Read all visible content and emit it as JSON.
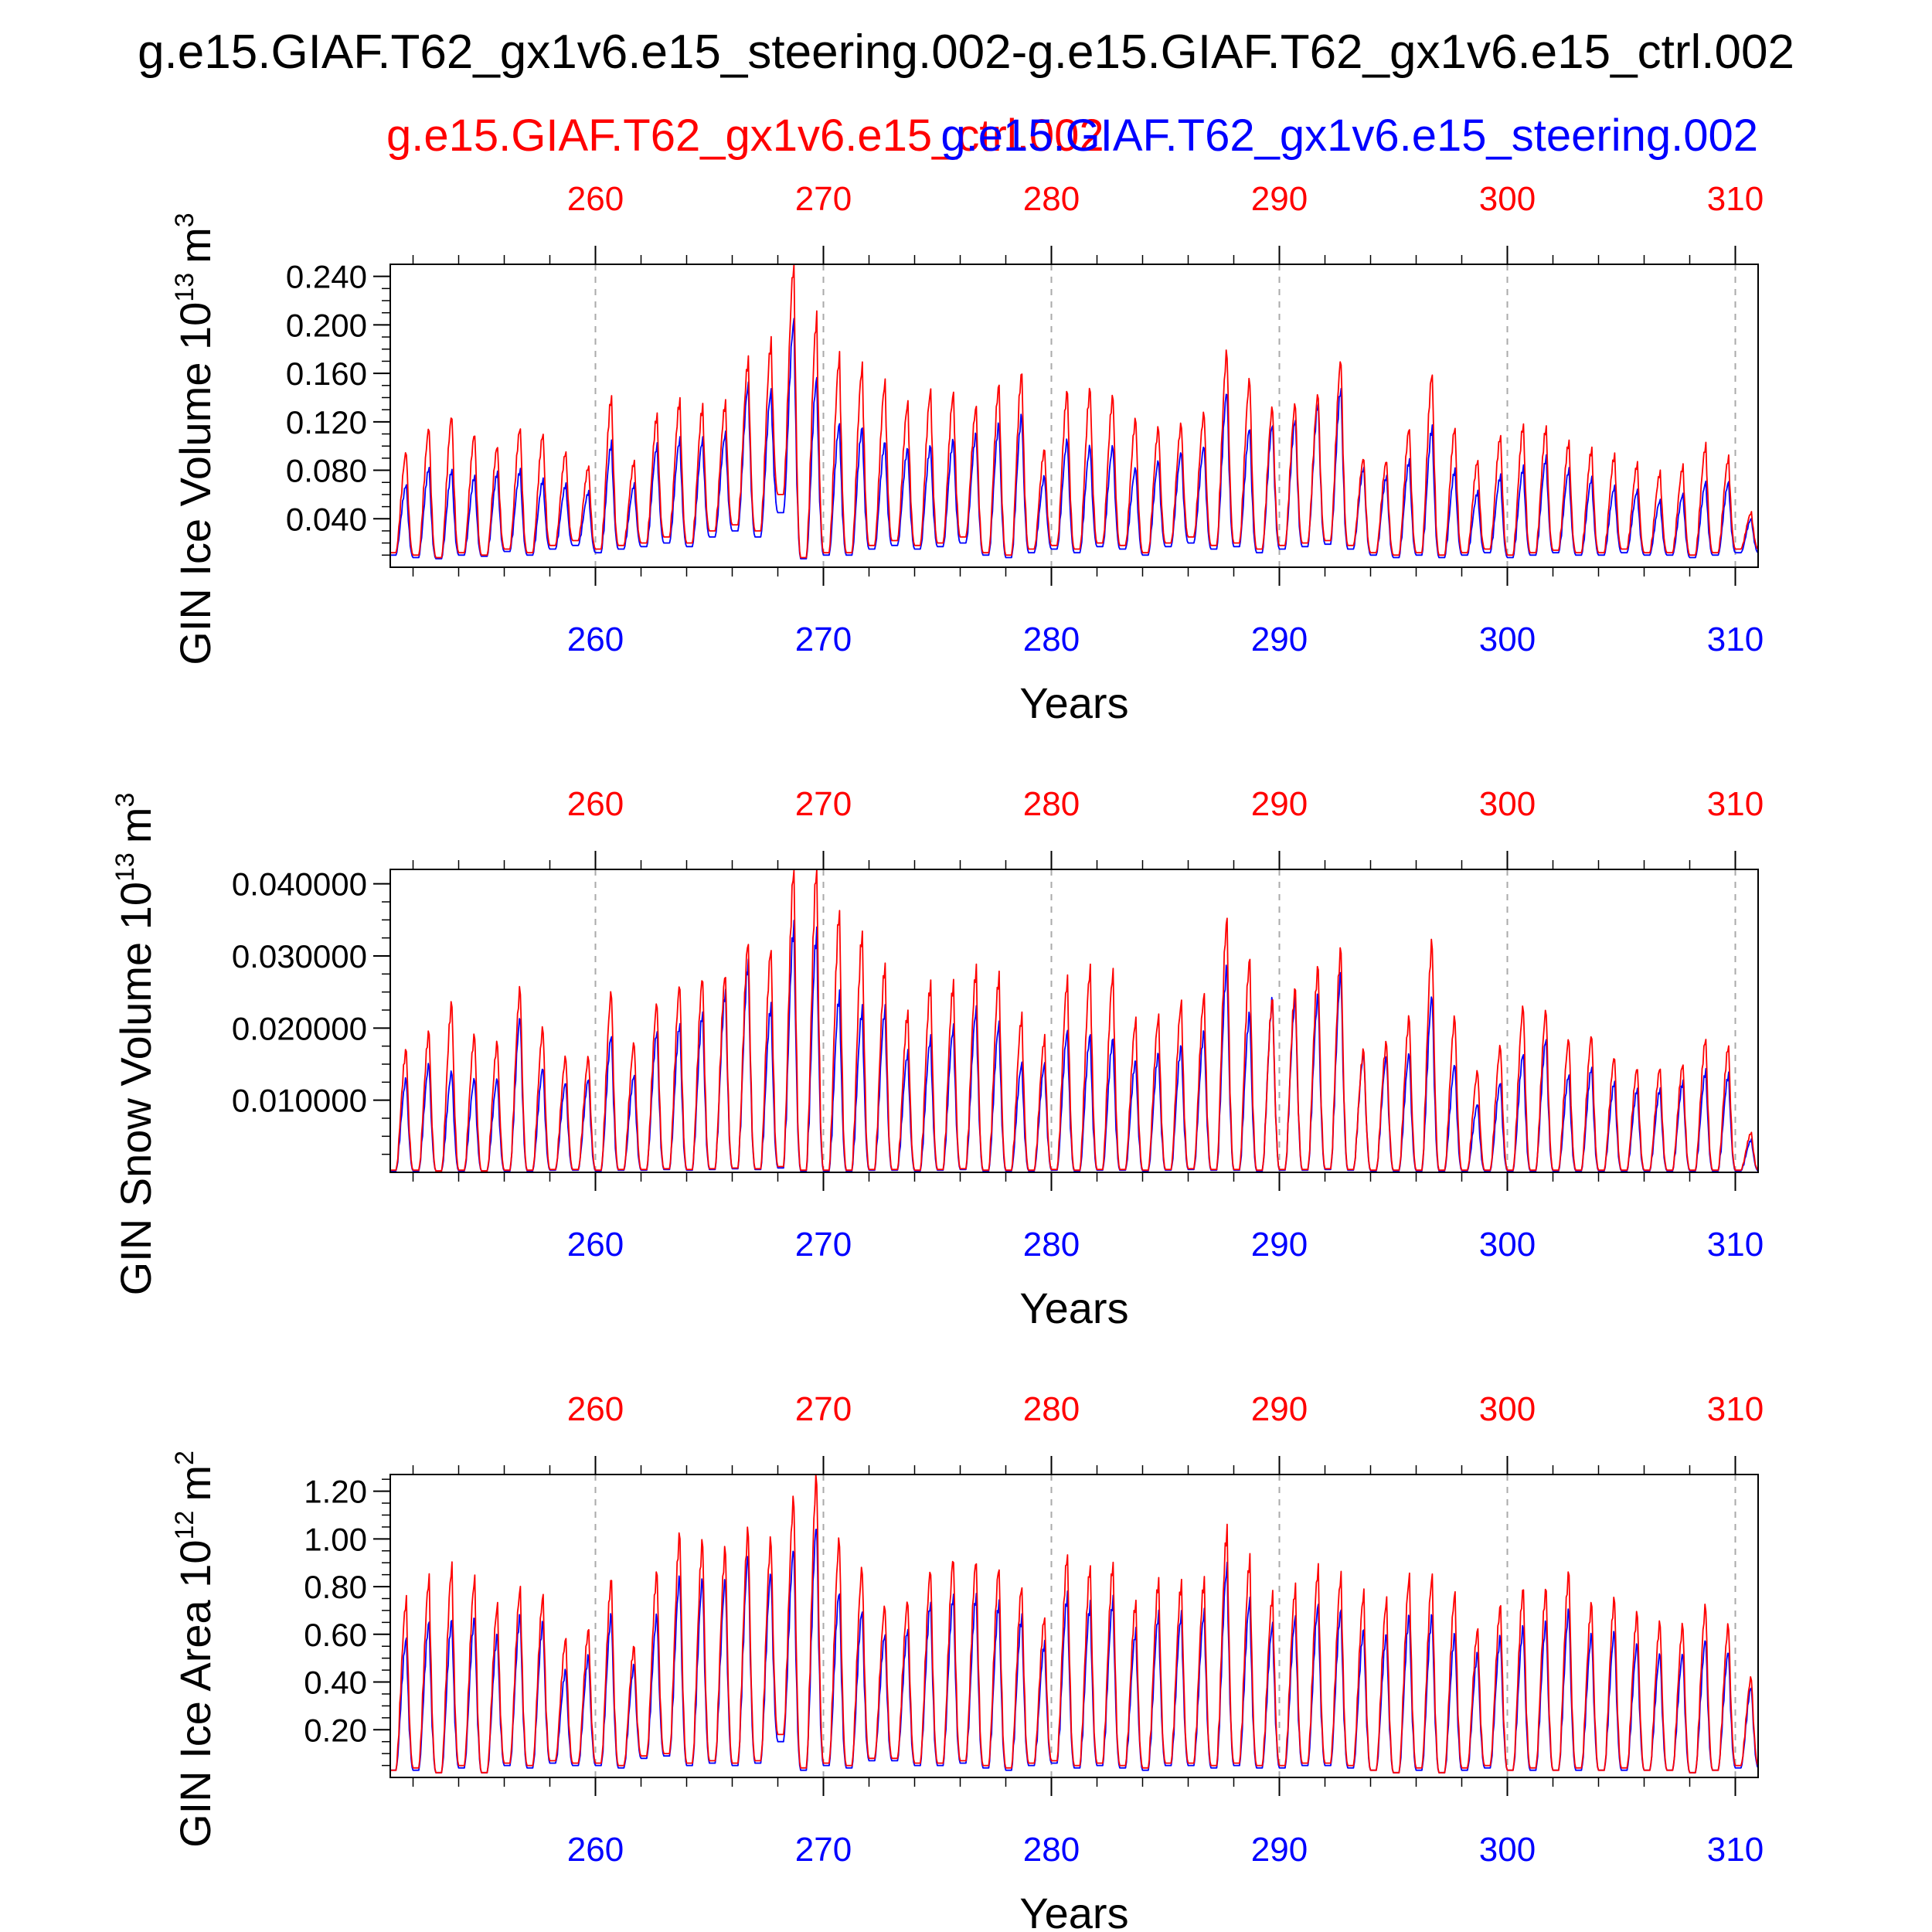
{
  "figure": {
    "title": "g.e15.GIAF.T62_gx1v6.e15_steering.002-g.e15.GIAF.T62_gx1v6.e15_ctrl.002",
    "series_ctrl_label": "g.e15.GIAF.T62_gx1v6.e15_ctrl.002",
    "series_steering_label": "g.e15.GIAF.T62_gx1v6.e15_steering.002",
    "colors": {
      "ctrl": "#ff0000",
      "steering": "#0000ff",
      "axis": "#000000",
      "grid": "#aaaaaa"
    }
  },
  "chart_data": [
    {
      "type": "line",
      "title": "",
      "xlabel": "Years",
      "ylabel": "GIN Ice Volume 10^13 m^3",
      "ylabel_main": "GIN Ice Volume 10",
      "ylabel_exp": "13",
      "ylabel_unit": "m",
      "ylabel_unit_exp": "3",
      "xlim": [
        251,
        311
      ],
      "ylim": [
        0.0,
        0.25
      ],
      "yticks": [
        0.04,
        0.08,
        0.12,
        0.16,
        0.2,
        0.24
      ],
      "ytick_labels": [
        "0.040",
        "0.080",
        "0.120",
        "0.160",
        "0.200",
        "0.240"
      ],
      "xticks": [
        260,
        270,
        280,
        290,
        300,
        310
      ],
      "xtick_labels": [
        "260",
        "270",
        "280",
        "290",
        "300",
        "310"
      ],
      "grid": "dashed vertical at decades",
      "series": [
        {
          "name": "g.e15.GIAF.T62_gx1v6.e15_ctrl.002",
          "color": "#ff0000",
          "year_start": 251,
          "annual_max": [
            0.095,
            0.115,
            0.125,
            0.11,
            0.1,
            0.115,
            0.11,
            0.095,
            0.083,
            0.14,
            0.087,
            0.125,
            0.137,
            0.132,
            0.135,
            0.17,
            0.185,
            0.25,
            0.205,
            0.173,
            0.165,
            0.152,
            0.135,
            0.145,
            0.143,
            0.132,
            0.15,
            0.16,
            0.097,
            0.145,
            0.147,
            0.141,
            0.122,
            0.115,
            0.118,
            0.127,
            0.178,
            0.155,
            0.132,
            0.135,
            0.143,
            0.171,
            0.09,
            0.088,
            0.115,
            0.16,
            0.115,
            0.088,
            0.108,
            0.117,
            0.115,
            0.103,
            0.097,
            0.092,
            0.085,
            0.078,
            0.083,
            0.1,
            0.09,
            0.045
          ],
          "annual_min": [
            0.012,
            0.01,
            0.008,
            0.012,
            0.01,
            0.015,
            0.012,
            0.018,
            0.022,
            0.015,
            0.018,
            0.02,
            0.025,
            0.02,
            0.03,
            0.035,
            0.03,
            0.06,
            0.008,
            0.012,
            0.012,
            0.018,
            0.022,
            0.018,
            0.02,
            0.025,
            0.012,
            0.01,
            0.015,
            0.018,
            0.015,
            0.02,
            0.018,
            0.012,
            0.02,
            0.025,
            0.018,
            0.02,
            0.015,
            0.018,
            0.02,
            0.022,
            0.018,
            0.012,
            0.01,
            0.012,
            0.01,
            0.012,
            0.015,
            0.01,
            0.012,
            0.014,
            0.012,
            0.012,
            0.015,
            0.012,
            0.012,
            0.01,
            0.012,
            0.015
          ]
        },
        {
          "name": "g.e15.GIAF.T62_gx1v6.e15_steering.002",
          "color": "#0000ff",
          "year_start": 251,
          "annual_max": [
            0.068,
            0.082,
            0.08,
            0.075,
            0.078,
            0.08,
            0.072,
            0.068,
            0.062,
            0.102,
            0.068,
            0.1,
            0.105,
            0.105,
            0.11,
            0.15,
            0.145,
            0.203,
            0.155,
            0.118,
            0.115,
            0.103,
            0.098,
            0.1,
            0.105,
            0.11,
            0.118,
            0.125,
            0.075,
            0.105,
            0.1,
            0.1,
            0.082,
            0.088,
            0.095,
            0.1,
            0.145,
            0.115,
            0.118,
            0.122,
            0.135,
            0.147,
            0.082,
            0.075,
            0.088,
            0.115,
            0.08,
            0.062,
            0.075,
            0.082,
            0.09,
            0.08,
            0.073,
            0.066,
            0.063,
            0.055,
            0.06,
            0.07,
            0.07,
            0.04
          ],
          "annual_min": [
            0.01,
            0.008,
            0.007,
            0.01,
            0.009,
            0.013,
            0.01,
            0.015,
            0.018,
            0.012,
            0.015,
            0.017,
            0.02,
            0.017,
            0.025,
            0.03,
            0.025,
            0.045,
            0.007,
            0.01,
            0.01,
            0.015,
            0.018,
            0.015,
            0.017,
            0.02,
            0.01,
            0.008,
            0.012,
            0.015,
            0.012,
            0.017,
            0.015,
            0.01,
            0.017,
            0.02,
            0.015,
            0.017,
            0.012,
            0.015,
            0.017,
            0.019,
            0.015,
            0.01,
            0.008,
            0.01,
            0.008,
            0.01,
            0.012,
            0.008,
            0.01,
            0.012,
            0.01,
            0.01,
            0.012,
            0.01,
            0.01,
            0.008,
            0.01,
            0.012
          ]
        }
      ]
    },
    {
      "type": "line",
      "title": "",
      "xlabel": "Years",
      "ylabel": "GIN Snow Volume 10^13 m^3",
      "ylabel_main": "GIN Snow Volume 10",
      "ylabel_exp": "13",
      "ylabel_unit": "m",
      "ylabel_unit_exp": "3",
      "xlim": [
        251,
        311
      ],
      "ylim": [
        0.0,
        0.042
      ],
      "yticks": [
        0.01,
        0.02,
        0.03,
        0.04
      ],
      "ytick_labels": [
        "0.010000",
        "0.020000",
        "0.030000",
        "0.040000"
      ],
      "xticks": [
        260,
        270,
        280,
        290,
        300,
        310
      ],
      "xtick_labels": [
        "260",
        "270",
        "280",
        "290",
        "300",
        "310"
      ],
      "grid": "dashed vertical at decades",
      "series": [
        {
          "name": "g.e15.GIAF.T62_gx1v6.e15_ctrl.002",
          "color": "#ff0000",
          "year_start": 251,
          "annual_max": [
            0.017,
            0.0195,
            0.0235,
            0.019,
            0.018,
            0.0255,
            0.02,
            0.016,
            0.016,
            0.025,
            0.018,
            0.0235,
            0.026,
            0.027,
            0.0275,
            0.032,
            0.031,
            0.042,
            0.042,
            0.036,
            0.033,
            0.0285,
            0.022,
            0.026,
            0.026,
            0.028,
            0.027,
            0.0215,
            0.0185,
            0.0265,
            0.028,
            0.0275,
            0.021,
            0.0215,
            0.0235,
            0.0245,
            0.035,
            0.0295,
            0.024,
            0.0255,
            0.0285,
            0.031,
            0.017,
            0.018,
            0.0215,
            0.032,
            0.0215,
            0.014,
            0.0175,
            0.023,
            0.0225,
            0.0185,
            0.019,
            0.016,
            0.0145,
            0.0145,
            0.015,
            0.0185,
            0.0175,
            0.0055
          ],
          "annual_min": [
            0.0003,
            0.0003,
            0.0002,
            0.0003,
            0.0002,
            0.0003,
            0.0003,
            0.0004,
            0.0004,
            0.0003,
            0.0004,
            0.0004,
            0.0005,
            0.0004,
            0.0005,
            0.0006,
            0.0005,
            0.0008,
            0.0003,
            0.0003,
            0.0003,
            0.0004,
            0.0004,
            0.0003,
            0.0004,
            0.0005,
            0.0003,
            0.0003,
            0.0003,
            0.0004,
            0.0003,
            0.0004,
            0.0004,
            0.0003,
            0.0004,
            0.0005,
            0.0004,
            0.0004,
            0.0003,
            0.0004,
            0.0004,
            0.0005,
            0.0004,
            0.0003,
            0.0003,
            0.0003,
            0.0003,
            0.0003,
            0.0003,
            0.0003,
            0.0003,
            0.0003,
            0.0003,
            0.0003,
            0.0003,
            0.0003,
            0.0003,
            0.0003,
            0.0003,
            0.0003
          ]
        },
        {
          "name": "g.e15.GIAF.T62_gx1v6.e15_steering.002",
          "color": "#0000ff",
          "year_start": 251,
          "annual_max": [
            0.013,
            0.015,
            0.014,
            0.013,
            0.013,
            0.0215,
            0.0145,
            0.0125,
            0.013,
            0.019,
            0.0135,
            0.0195,
            0.0205,
            0.022,
            0.025,
            0.029,
            0.023,
            0.034,
            0.033,
            0.0245,
            0.0225,
            0.0225,
            0.0165,
            0.0185,
            0.02,
            0.0225,
            0.0205,
            0.015,
            0.015,
            0.0195,
            0.019,
            0.0185,
            0.0155,
            0.0165,
            0.0175,
            0.0195,
            0.0285,
            0.022,
            0.024,
            0.024,
            0.0245,
            0.0275,
            0.0165,
            0.016,
            0.0165,
            0.0245,
            0.015,
            0.0095,
            0.0125,
            0.0165,
            0.0185,
            0.0135,
            0.0145,
            0.0125,
            0.0115,
            0.0115,
            0.0125,
            0.014,
            0.0135,
            0.0045
          ],
          "annual_min": [
            0.0002,
            0.0002,
            0.0002,
            0.0002,
            0.0002,
            0.0002,
            0.0002,
            0.0003,
            0.0003,
            0.0002,
            0.0003,
            0.0003,
            0.0004,
            0.0003,
            0.0004,
            0.0005,
            0.0004,
            0.0006,
            0.0002,
            0.0002,
            0.0002,
            0.0003,
            0.0003,
            0.0002,
            0.0003,
            0.0004,
            0.0002,
            0.0002,
            0.0002,
            0.0003,
            0.0002,
            0.0003,
            0.0003,
            0.0002,
            0.0003,
            0.0004,
            0.0003,
            0.0003,
            0.0002,
            0.0003,
            0.0003,
            0.0004,
            0.0003,
            0.0002,
            0.0002,
            0.0002,
            0.0002,
            0.0002,
            0.0002,
            0.0002,
            0.0002,
            0.0002,
            0.0002,
            0.0002,
            0.0002,
            0.0002,
            0.0002,
            0.0002,
            0.0002,
            0.0002
          ]
        }
      ]
    },
    {
      "type": "line",
      "title": "",
      "xlabel": "Years",
      "ylabel": "GIN Ice Area 10^12 m^2",
      "ylabel_main": "GIN Ice Area 10",
      "ylabel_exp": "12",
      "ylabel_unit": "m",
      "ylabel_unit_exp": "2",
      "xlim": [
        251,
        311
      ],
      "ylim": [
        0.0,
        1.27
      ],
      "yticks": [
        0.2,
        0.4,
        0.6,
        0.8,
        1.0,
        1.2
      ],
      "ytick_labels": [
        "0.20",
        "0.40",
        "0.60",
        "0.80",
        "1.00",
        "1.20"
      ],
      "xticks": [
        260,
        270,
        280,
        290,
        300,
        310
      ],
      "xtick_labels": [
        "260",
        "270",
        "280",
        "290",
        "300",
        "310"
      ],
      "grid": "dashed vertical at decades",
      "series": [
        {
          "name": "g.e15.GIAF.T62_gx1v6.e15_ctrl.002",
          "color": "#ff0000",
          "year_start": 251,
          "annual_max": [
            0.74,
            0.83,
            0.88,
            0.83,
            0.72,
            0.79,
            0.76,
            0.58,
            0.62,
            0.83,
            0.55,
            0.86,
            1.02,
            0.99,
            0.96,
            1.04,
            1.0,
            1.17,
            1.27,
            1.0,
            0.88,
            0.72,
            0.74,
            0.87,
            0.92,
            0.91,
            0.88,
            0.8,
            0.67,
            0.93,
            0.88,
            0.89,
            0.73,
            0.82,
            0.81,
            0.82,
            1.03,
            0.91,
            0.76,
            0.79,
            0.87,
            0.84,
            0.77,
            0.74,
            0.84,
            0.84,
            0.77,
            0.62,
            0.72,
            0.79,
            0.79,
            0.86,
            0.73,
            0.75,
            0.69,
            0.65,
            0.64,
            0.72,
            0.64,
            0.42
          ],
          "annual_min": [
            0.03,
            0.04,
            0.02,
            0.05,
            0.02,
            0.06,
            0.05,
            0.07,
            0.06,
            0.06,
            0.05,
            0.09,
            0.1,
            0.06,
            0.07,
            0.06,
            0.07,
            0.18,
            0.04,
            0.06,
            0.05,
            0.08,
            0.08,
            0.06,
            0.06,
            0.07,
            0.05,
            0.04,
            0.06,
            0.07,
            0.05,
            0.06,
            0.05,
            0.04,
            0.06,
            0.06,
            0.05,
            0.06,
            0.05,
            0.05,
            0.06,
            0.06,
            0.05,
            0.03,
            0.02,
            0.04,
            0.02,
            0.04,
            0.05,
            0.03,
            0.04,
            0.03,
            0.04,
            0.03,
            0.04,
            0.03,
            0.03,
            0.02,
            0.03,
            0.05
          ]
        },
        {
          "name": "g.e15.GIAF.T62_gx1v6.e15_steering.002",
          "color": "#0000ff",
          "year_start": 251,
          "annual_max": [
            0.58,
            0.65,
            0.66,
            0.67,
            0.6,
            0.68,
            0.65,
            0.45,
            0.51,
            0.68,
            0.47,
            0.68,
            0.84,
            0.83,
            0.83,
            0.93,
            0.86,
            0.96,
            1.06,
            0.78,
            0.7,
            0.6,
            0.62,
            0.73,
            0.76,
            0.76,
            0.73,
            0.67,
            0.56,
            0.76,
            0.72,
            0.74,
            0.61,
            0.68,
            0.68,
            0.69,
            0.88,
            0.74,
            0.64,
            0.67,
            0.72,
            0.7,
            0.62,
            0.6,
            0.68,
            0.68,
            0.6,
            0.52,
            0.59,
            0.63,
            0.65,
            0.7,
            0.6,
            0.61,
            0.56,
            0.52,
            0.52,
            0.58,
            0.53,
            0.38
          ],
          "annual_min": [
            0.03,
            0.03,
            0.02,
            0.04,
            0.02,
            0.05,
            0.04,
            0.06,
            0.05,
            0.05,
            0.04,
            0.08,
            0.09,
            0.05,
            0.06,
            0.05,
            0.06,
            0.15,
            0.03,
            0.05,
            0.04,
            0.07,
            0.07,
            0.05,
            0.05,
            0.06,
            0.04,
            0.03,
            0.05,
            0.06,
            0.04,
            0.05,
            0.04,
            0.03,
            0.05,
            0.05,
            0.04,
            0.05,
            0.04,
            0.04,
            0.05,
            0.05,
            0.04,
            0.03,
            0.02,
            0.03,
            0.02,
            0.03,
            0.04,
            0.03,
            0.03,
            0.03,
            0.03,
            0.03,
            0.03,
            0.03,
            0.03,
            0.02,
            0.03,
            0.04
          ]
        }
      ]
    }
  ]
}
